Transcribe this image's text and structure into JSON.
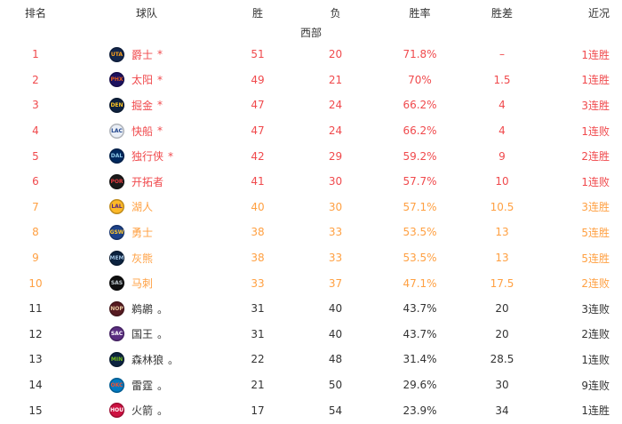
{
  "colors": {
    "red": "#f04a4d",
    "orange": "#ffa042",
    "normal": "#333333",
    "header": "#333333"
  },
  "table": {
    "headers": {
      "rank": "排名",
      "team": "球队",
      "wins": "胜",
      "losses": "负",
      "win_pct": "胜率",
      "games_behind": "胜差",
      "recent": "近况"
    },
    "section": "西部",
    "rows": [
      {
        "rank": "1",
        "team": "爵士",
        "marker": "*",
        "abbr": "UTA",
        "logo_bg": "#12264d",
        "logo_fg": "#f9a01b",
        "wins": "51",
        "losses": "20",
        "pct": "71.8%",
        "gb": "–",
        "recent": "1连胜",
        "tier": "red"
      },
      {
        "rank": "2",
        "team": "太阳",
        "marker": "*",
        "abbr": "PHX",
        "logo_bg": "#1d1160",
        "logo_fg": "#e56020",
        "wins": "49",
        "losses": "21",
        "pct": "70%",
        "gb": "1.5",
        "recent": "1连胜",
        "tier": "red"
      },
      {
        "rank": "3",
        "team": "掘金",
        "marker": "*",
        "abbr": "DEN",
        "logo_bg": "#0e2240",
        "logo_fg": "#fec524",
        "wins": "47",
        "losses": "24",
        "pct": "66.2%",
        "gb": "4",
        "recent": "3连胜",
        "tier": "red"
      },
      {
        "rank": "4",
        "team": "快船",
        "marker": "*",
        "abbr": "LAC",
        "logo_bg": "#e9eef6",
        "logo_fg": "#1d428a",
        "wins": "47",
        "losses": "24",
        "pct": "66.2%",
        "gb": "4",
        "recent": "1连败",
        "tier": "red"
      },
      {
        "rank": "5",
        "team": "独行侠",
        "marker": "*",
        "abbr": "DAL",
        "logo_bg": "#00285e",
        "logo_fg": "#8ec8e8",
        "wins": "42",
        "losses": "29",
        "pct": "59.2%",
        "gb": "9",
        "recent": "2连胜",
        "tier": "red"
      },
      {
        "rank": "6",
        "team": "开拓者",
        "marker": "",
        "abbr": "POR",
        "logo_bg": "#1b1b1b",
        "logo_fg": "#e03a3e",
        "wins": "41",
        "losses": "30",
        "pct": "57.7%",
        "gb": "10",
        "recent": "1连败",
        "tier": "red"
      },
      {
        "rank": "7",
        "team": "湖人",
        "marker": "",
        "abbr": "LAL",
        "logo_bg": "#fdb927",
        "logo_fg": "#552583",
        "wins": "40",
        "losses": "30",
        "pct": "57.1%",
        "gb": "10.5",
        "recent": "3连胜",
        "tier": "orange"
      },
      {
        "rank": "8",
        "team": "勇士",
        "marker": "",
        "abbr": "GSW",
        "logo_bg": "#1d428a",
        "logo_fg": "#ffc72c",
        "wins": "38",
        "losses": "33",
        "pct": "53.5%",
        "gb": "13",
        "recent": "5连胜",
        "tier": "orange"
      },
      {
        "rank": "9",
        "team": "灰熊",
        "marker": "",
        "abbr": "MEM",
        "logo_bg": "#0c2340",
        "logo_fg": "#9ebfdd",
        "wins": "38",
        "losses": "33",
        "pct": "53.5%",
        "gb": "13",
        "recent": "5连胜",
        "tier": "orange"
      },
      {
        "rank": "10",
        "team": "马刺",
        "marker": "",
        "abbr": "SAS",
        "logo_bg": "#0f0f0f",
        "logo_fg": "#c4ced4",
        "wins": "33",
        "losses": "37",
        "pct": "47.1%",
        "gb": "17.5",
        "recent": "2连败",
        "tier": "orange"
      },
      {
        "rank": "11",
        "team": "鹈鹕",
        "marker": "。",
        "abbr": "NOP",
        "logo_bg": "#571b22",
        "logo_fg": "#e8c9a0",
        "wins": "31",
        "losses": "40",
        "pct": "43.7%",
        "gb": "20",
        "recent": "3连败",
        "tier": "normal"
      },
      {
        "rank": "12",
        "team": "国王",
        "marker": "。",
        "abbr": "SAC",
        "logo_bg": "#5a2d81",
        "logo_fg": "#ffffff",
        "wins": "31",
        "losses": "40",
        "pct": "43.7%",
        "gb": "20",
        "recent": "2连败",
        "tier": "normal"
      },
      {
        "rank": "13",
        "team": "森林狼",
        "marker": "。",
        "abbr": "MIN",
        "logo_bg": "#0c2340",
        "logo_fg": "#78be20",
        "wins": "22",
        "losses": "48",
        "pct": "31.4%",
        "gb": "28.5",
        "recent": "1连败",
        "tier": "normal"
      },
      {
        "rank": "14",
        "team": "雷霆",
        "marker": "。",
        "abbr": "OKC",
        "logo_bg": "#007ac1",
        "logo_fg": "#f05133",
        "wins": "21",
        "losses": "50",
        "pct": "29.6%",
        "gb": "30",
        "recent": "9连败",
        "tier": "normal"
      },
      {
        "rank": "15",
        "team": "火箭",
        "marker": "。",
        "abbr": "HOU",
        "logo_bg": "#ce1141",
        "logo_fg": "#ffffff",
        "wins": "17",
        "losses": "54",
        "pct": "23.9%",
        "gb": "34",
        "recent": "1连胜",
        "tier": "normal"
      }
    ]
  }
}
